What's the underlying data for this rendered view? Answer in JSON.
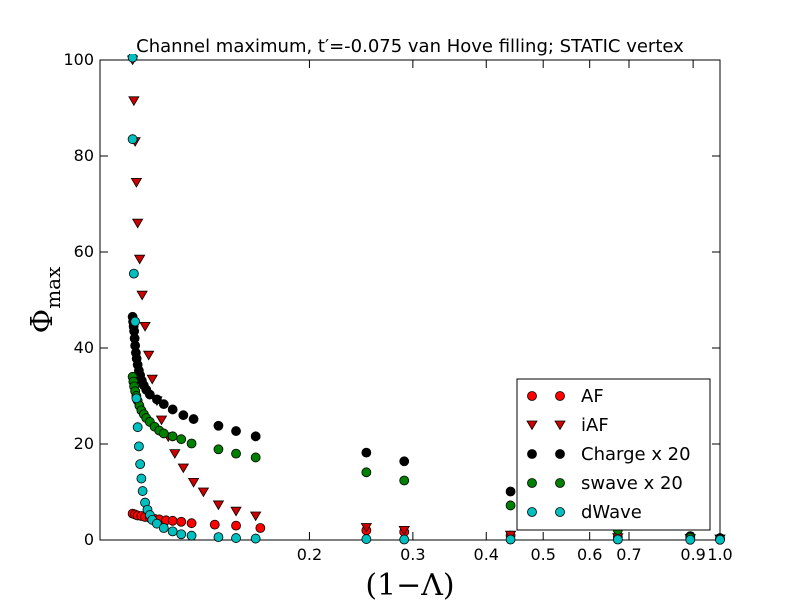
{
  "chart_data": {
    "type": "scatter",
    "title": "Channel maximum, t′=-0.075 van Hove filling; STATIC vertex",
    "xlabel": "(1−Λ)",
    "ylabel_base": "Φ",
    "ylabel_sub": "max",
    "x_scale": "log",
    "xlim": [
      0.088,
      1.0
    ],
    "ylim": [
      0,
      100
    ],
    "x_ticks": [
      {
        "value": 0.2,
        "label": "0.2"
      },
      {
        "value": 0.3,
        "label": "0.3"
      },
      {
        "value": 0.4,
        "label": "0.4"
      },
      {
        "value": 0.5,
        "label": "0.5"
      },
      {
        "value": 0.6,
        "label": "0.6"
      },
      {
        "value": 0.7,
        "label": "0.7"
      },
      {
        "value": 0.9,
        "label": "0.9"
      },
      {
        "value": 1.0,
        "label": "1.0"
      }
    ],
    "y_ticks": [
      {
        "value": 0,
        "label": "0"
      },
      {
        "value": 20,
        "label": "20"
      },
      {
        "value": 40,
        "label": "40"
      },
      {
        "value": 60,
        "label": "60"
      },
      {
        "value": 80,
        "label": "80"
      },
      {
        "value": 100,
        "label": "100"
      }
    ],
    "legend_position": "lower-right",
    "series": [
      {
        "name": "AF",
        "marker": "circle",
        "color": "#ff0000",
        "points": [
          [
            0.1,
            5.5
          ],
          [
            0.101,
            5.3
          ],
          [
            0.102,
            5.1
          ],
          [
            0.1035,
            5.0
          ],
          [
            0.105,
            4.8
          ],
          [
            0.107,
            4.6
          ],
          [
            0.109,
            4.4
          ],
          [
            0.111,
            4.3
          ],
          [
            0.114,
            4.1
          ],
          [
            0.117,
            4.0
          ],
          [
            0.121,
            3.8
          ],
          [
            0.126,
            3.5
          ],
          [
            0.138,
            3.2
          ],
          [
            0.15,
            3.0
          ],
          [
            0.165,
            2.5
          ],
          [
            0.25,
            2.0
          ],
          [
            0.29,
            1.7
          ],
          [
            0.44,
            0.9
          ],
          [
            0.67,
            0.6
          ],
          [
            0.89,
            0.3
          ],
          [
            1.0,
            0.2
          ]
        ]
      },
      {
        "name": "iAF",
        "marker": "triangle-down",
        "color": "#cc0000",
        "points": [
          [
            0.1,
            100
          ],
          [
            0.1005,
            91.5
          ],
          [
            0.101,
            83
          ],
          [
            0.1015,
            74.5
          ],
          [
            0.102,
            66
          ],
          [
            0.1028,
            58.5
          ],
          [
            0.1038,
            51
          ],
          [
            0.105,
            44.5
          ],
          [
            0.1065,
            38.5
          ],
          [
            0.108,
            33.5
          ],
          [
            0.11,
            29
          ],
          [
            0.112,
            25
          ],
          [
            0.115,
            21.5
          ],
          [
            0.118,
            18
          ],
          [
            0.122,
            15
          ],
          [
            0.127,
            12
          ],
          [
            0.132,
            10
          ],
          [
            0.14,
            7.3
          ],
          [
            0.15,
            6
          ],
          [
            0.162,
            5
          ],
          [
            0.25,
            2.6
          ],
          [
            0.29,
            2.0
          ],
          [
            0.44,
            1.0
          ],
          [
            0.67,
            0.5
          ],
          [
            0.89,
            0.3
          ],
          [
            1.0,
            0.2
          ]
        ]
      },
      {
        "name": "Charge x 20",
        "marker": "circle",
        "color": "#000000",
        "points": [
          [
            0.1,
            46.5
          ],
          [
            0.1002,
            45.5
          ],
          [
            0.1004,
            44.5
          ],
          [
            0.1006,
            43.5
          ],
          [
            0.1008,
            42
          ],
          [
            0.101,
            40.5
          ],
          [
            0.1013,
            39
          ],
          [
            0.1016,
            37.8
          ],
          [
            0.102,
            36.5
          ],
          [
            0.1025,
            35.3
          ],
          [
            0.103,
            34.3
          ],
          [
            0.1037,
            33.2
          ],
          [
            0.1045,
            32.2
          ],
          [
            0.1055,
            31.3
          ],
          [
            0.107,
            30.3
          ],
          [
            0.11,
            29.3
          ],
          [
            0.113,
            28.3
          ],
          [
            0.117,
            27.2
          ],
          [
            0.122,
            26
          ],
          [
            0.127,
            25.2
          ],
          [
            0.14,
            23.8
          ],
          [
            0.15,
            22.7
          ],
          [
            0.162,
            21.6
          ],
          [
            0.25,
            18.2
          ],
          [
            0.29,
            16.4
          ],
          [
            0.44,
            10.1
          ],
          [
            0.67,
            5.0
          ],
          [
            0.89,
            0.8
          ],
          [
            1.0,
            0.4
          ]
        ]
      },
      {
        "name": "swave x 20",
        "marker": "circle",
        "color": "#008000",
        "points": [
          [
            0.1,
            34
          ],
          [
            0.1003,
            33
          ],
          [
            0.1006,
            32
          ],
          [
            0.101,
            31
          ],
          [
            0.1015,
            30
          ],
          [
            0.102,
            29
          ],
          [
            0.1027,
            28
          ],
          [
            0.1035,
            27
          ],
          [
            0.1045,
            26.2
          ],
          [
            0.1055,
            25.4
          ],
          [
            0.107,
            24.6
          ],
          [
            0.109,
            23.6
          ],
          [
            0.111,
            22.8
          ],
          [
            0.113,
            22.2
          ],
          [
            0.117,
            21.6
          ],
          [
            0.121,
            21
          ],
          [
            0.126,
            20.1
          ],
          [
            0.14,
            18.9
          ],
          [
            0.15,
            18
          ],
          [
            0.162,
            17.2
          ],
          [
            0.25,
            14.1
          ],
          [
            0.29,
            12.4
          ],
          [
            0.44,
            7.2
          ],
          [
            0.67,
            2.1
          ],
          [
            0.89,
            0.5
          ],
          [
            1.0,
            0.2
          ]
        ]
      },
      {
        "name": "dWave",
        "marker": "circle",
        "color": "#00bfbf",
        "points": [
          [
            0.1,
            100.5
          ],
          [
            0.1,
            83.5
          ],
          [
            0.1005,
            55.5
          ],
          [
            0.101,
            45.5
          ],
          [
            0.1015,
            29.5
          ],
          [
            0.102,
            23.5
          ],
          [
            0.1025,
            19.5
          ],
          [
            0.103,
            15.8
          ],
          [
            0.1035,
            12.8
          ],
          [
            0.104,
            10.2
          ],
          [
            0.105,
            7.8
          ],
          [
            0.106,
            6.3
          ],
          [
            0.107,
            5.2
          ],
          [
            0.108,
            4.2
          ],
          [
            0.11,
            3.4
          ],
          [
            0.113,
            2.5
          ],
          [
            0.117,
            1.8
          ],
          [
            0.121,
            1.2
          ],
          [
            0.126,
            0.9
          ],
          [
            0.14,
            0.6
          ],
          [
            0.15,
            0.4
          ],
          [
            0.162,
            0.3
          ],
          [
            0.25,
            0.2
          ],
          [
            0.29,
            0.1
          ],
          [
            0.44,
            0.1
          ],
          [
            0.67,
            0.1
          ],
          [
            0.89,
            0.05
          ],
          [
            1.0,
            0.05
          ]
        ]
      }
    ]
  }
}
